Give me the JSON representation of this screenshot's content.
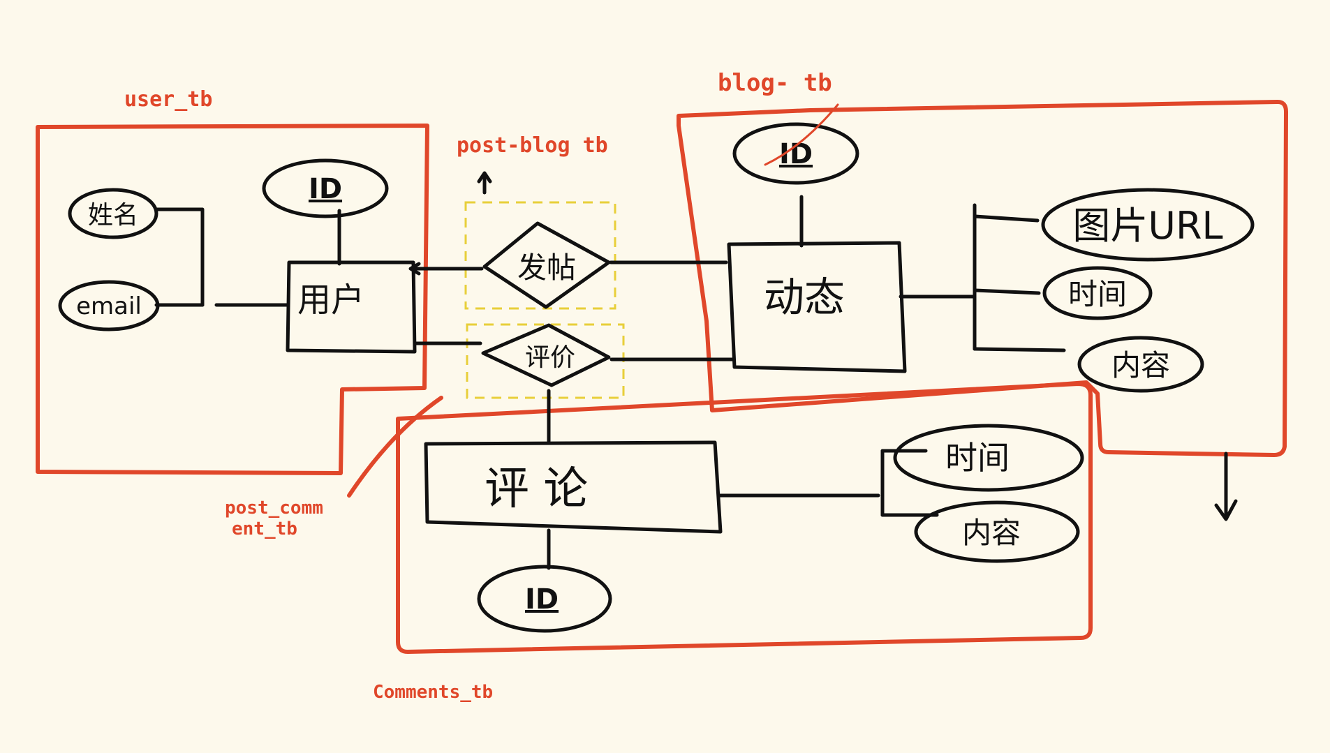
{
  "groups": {
    "user_tb": "user_tb",
    "blog_tb": "blog- tb",
    "post_blog_tb": "post-blog tb",
    "post_comment_tb_1": "post_comm",
    "post_comment_tb_2": "ent_tb",
    "comments_tb": "Comments_tb"
  },
  "entities": {
    "user": "用户",
    "blog": "动态",
    "comment": "评 论"
  },
  "relationships": {
    "post": "发帖",
    "review": "评价"
  },
  "attributes": {
    "user_name": "姓名",
    "user_email": "email",
    "user_id": "ID",
    "blog_id": "ID",
    "blog_image_url": "图片URL",
    "blog_time": "时间",
    "blog_content": "内容",
    "comment_time": "时间",
    "comment_content": "内容",
    "comment_id": "ID"
  },
  "colors": {
    "ink": "#111111",
    "group_outline": "#e0472a",
    "relation_outline": "#e8cf3a",
    "background": "#fdf9ec"
  }
}
